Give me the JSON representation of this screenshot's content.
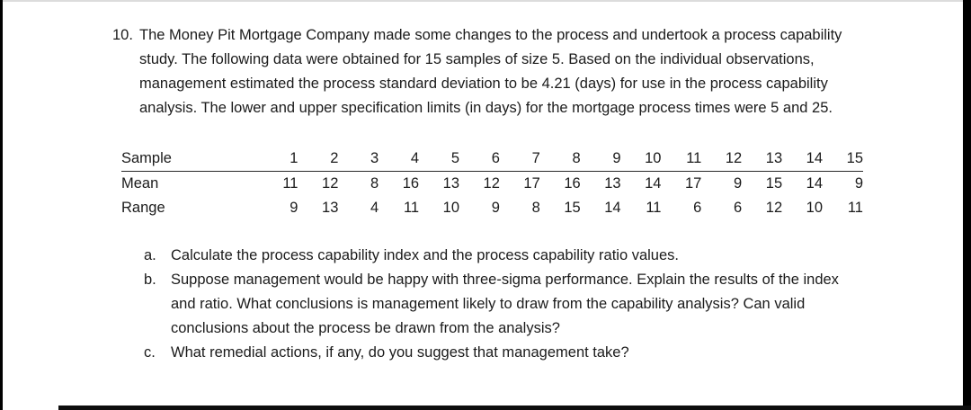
{
  "page": {
    "background": "#ffffff",
    "text_color": "#1b1b1b",
    "edge_bar_color": "#000000"
  },
  "problem": {
    "number": "10.",
    "statement": "The Money Pit Mortgage Company made some changes to the process and undertook a process capability study. The following data were obtained for 15 samples of size 5. Based on the individual observations, management estimated the process standard deviation to be 4.21 (days) for use in the process capability analysis. The lower and upper specification limits (in days) for the mortgage process times were 5 and 25."
  },
  "chart_data": {
    "type": "table",
    "rows": [
      {
        "label": "Sample",
        "values": [
          "1",
          "2",
          "3",
          "4",
          "5",
          "6",
          "7",
          "8",
          "9",
          "10",
          "11",
          "12",
          "13",
          "14",
          "15"
        ]
      },
      {
        "label": "Mean",
        "values": [
          "11",
          "12",
          "8",
          "16",
          "13",
          "12",
          "17",
          "16",
          "13",
          "14",
          "17",
          "9",
          "15",
          "14",
          "9"
        ]
      },
      {
        "label": "Range",
        "values": [
          "9",
          "13",
          "4",
          "11",
          "10",
          "9",
          "8",
          "15",
          "14",
          "11",
          "6",
          "6",
          "12",
          "10",
          "11"
        ]
      }
    ]
  },
  "questions": [
    {
      "letter": "a.",
      "text": "Calculate the process capability index and the process capability ratio values."
    },
    {
      "letter": "b.",
      "text": "Suppose management would be happy with three-sigma performance. Explain the results of the index and ratio. What conclusions is management likely to draw from the capability analysis? Can valid conclusions about the process be drawn from the analysis?"
    },
    {
      "letter": "c.",
      "text": "What remedial actions, if any, do you suggest that management take?"
    }
  ]
}
